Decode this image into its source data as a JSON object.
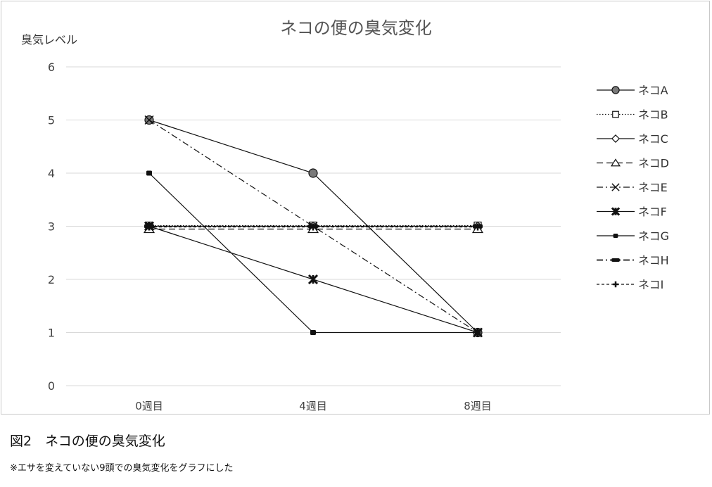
{
  "chart_data": {
    "type": "line",
    "title": "ネコの便の臭気変化",
    "ylabel": "臭気レベル",
    "xlabel": "",
    "categories": [
      "0週目",
      "4週目",
      "8週目"
    ],
    "ylim": [
      0,
      6
    ],
    "yticks": [
      0,
      1,
      2,
      3,
      4,
      5,
      6
    ],
    "grid": true,
    "legend_position": "right",
    "series": [
      {
        "name": "ネコA",
        "values": [
          5,
          4,
          1
        ],
        "marker": "circle-filled",
        "dash": "solid"
      },
      {
        "name": "ネコB",
        "values": [
          3,
          3,
          3
        ],
        "marker": "square-open",
        "dash": "dotted"
      },
      {
        "name": "ネコC",
        "values": [
          3,
          3,
          3
        ],
        "marker": "diamond-open",
        "dash": "solid"
      },
      {
        "name": "ネコD",
        "values": [
          3,
          3,
          3
        ],
        "marker": "triangle-open",
        "dash": "dashed"
      },
      {
        "name": "ネコE",
        "values": [
          5,
          3,
          1
        ],
        "marker": "x",
        "dash": "dashdot"
      },
      {
        "name": "ネコF",
        "values": [
          3,
          2,
          1
        ],
        "marker": "star",
        "dash": "solid"
      },
      {
        "name": "ネコG",
        "values": [
          4,
          1,
          1
        ],
        "marker": "square-small",
        "dash": "solid"
      },
      {
        "name": "ネコH",
        "values": [
          3,
          3,
          3
        ],
        "marker": "dash-bold",
        "dash": "dashdot"
      },
      {
        "name": "ネコI",
        "values": [
          3,
          3,
          3
        ],
        "marker": "plus",
        "dash": "shortdash"
      }
    ]
  },
  "caption": "図2　ネコの便の臭気変化",
  "note": "※エサを変えていない9頭での臭気変化をグラフにした"
}
